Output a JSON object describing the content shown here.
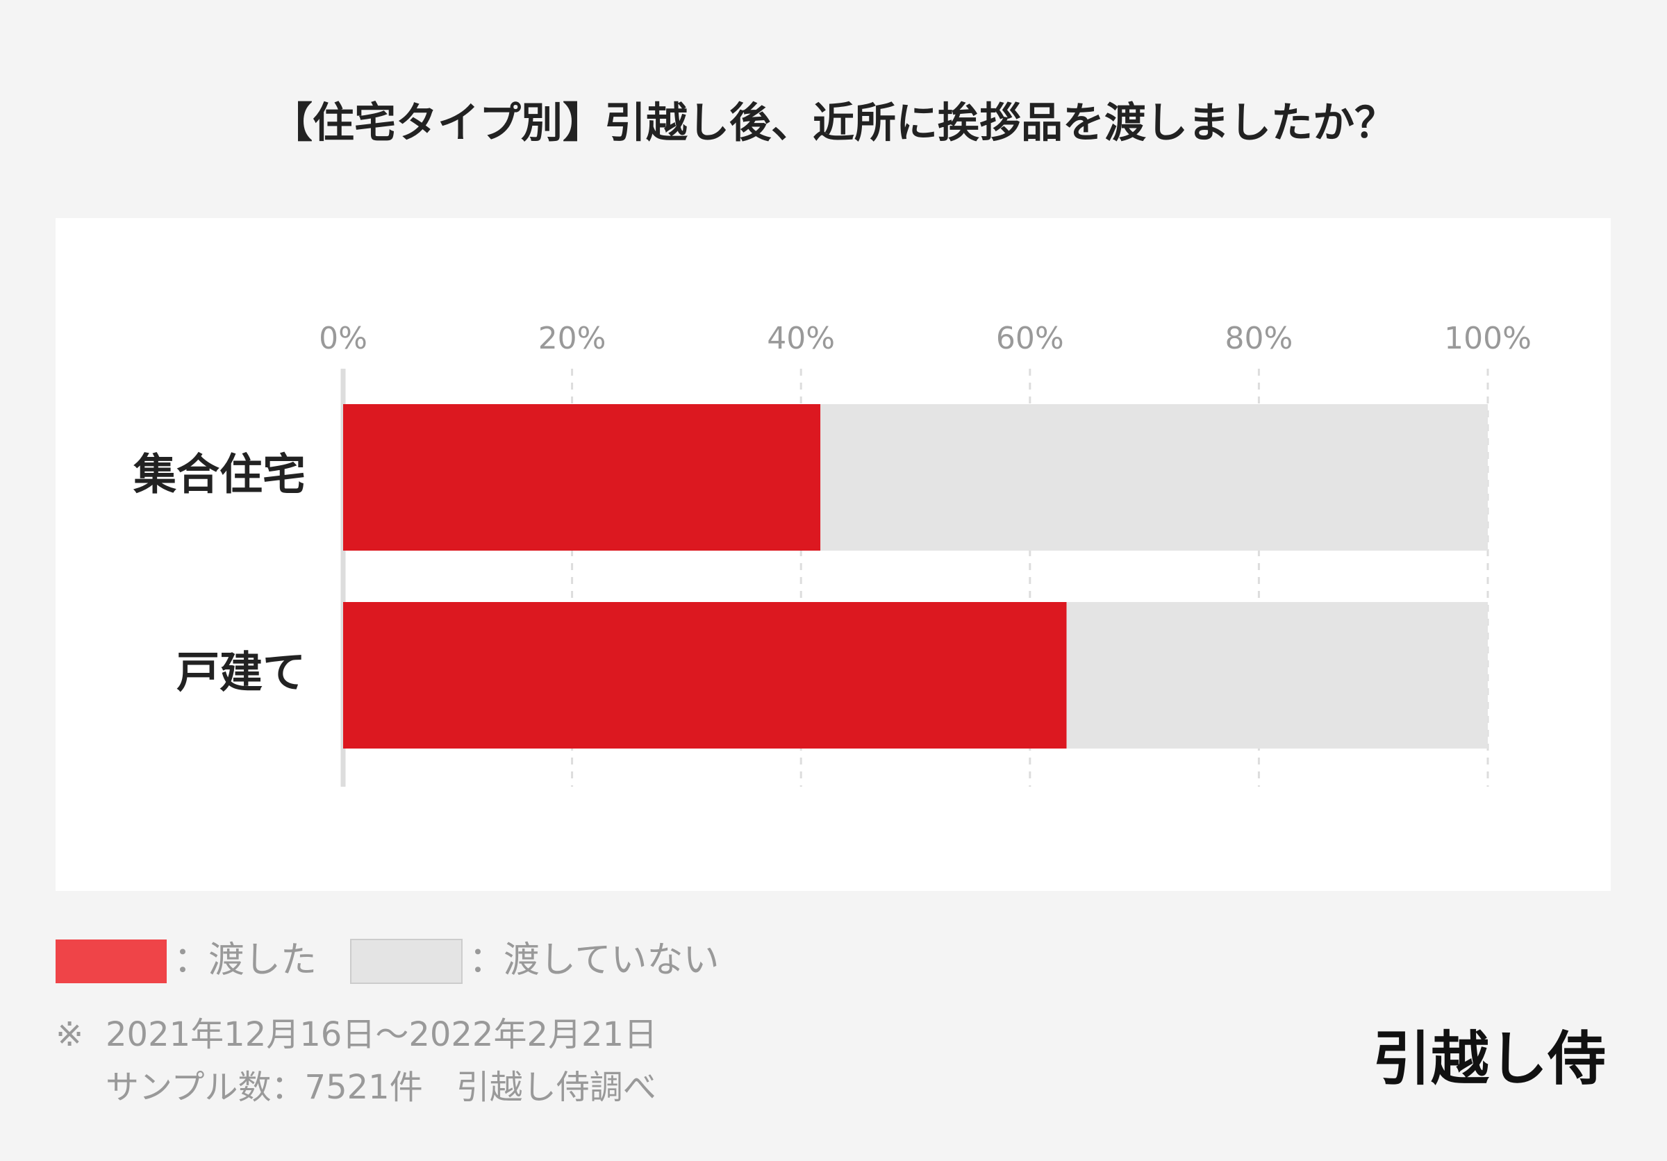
{
  "chart_data": {
    "type": "stacked_bar_horizontal",
    "title": "【住宅タイプ別】引越し後、近所に挨拶品を渡しましたか？",
    "categories": [
      "集合住宅",
      "戸建て"
    ],
    "series": [
      {
        "name": "渡した",
        "color": "#dc1820",
        "values": [
          41.7,
          63.2
        ]
      },
      {
        "name": "渡していない",
        "color": "#e4e4e4",
        "values": [
          58.3,
          36.8
        ]
      }
    ],
    "legend_separator": "：",
    "xlim": [
      0,
      100
    ],
    "xticks": [
      {
        "value": 0,
        "label": "0%"
      },
      {
        "value": 20,
        "label": "20%"
      },
      {
        "value": 40,
        "label": "40%"
      },
      {
        "value": 60,
        "label": "60%"
      },
      {
        "value": 80,
        "label": "80%"
      },
      {
        "value": 100,
        "label": "100%"
      }
    ],
    "grid": true,
    "notes": {
      "mark": "※",
      "period": "2021年12月16日～2022年2月21日",
      "sample": "サンプル数：7521件　引越し侍調べ"
    },
    "brand": "引越し侍"
  }
}
